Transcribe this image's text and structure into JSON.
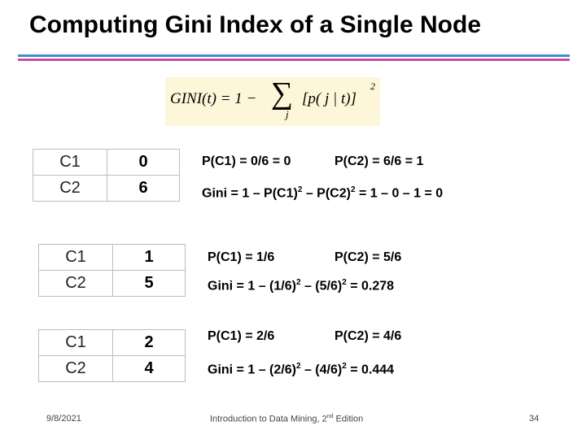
{
  "title": "Computing Gini Index of a Single Node",
  "formula": {
    "lhs": "GINI(t) = 1 −",
    "sum": "∑",
    "index": "j",
    "term": "[p( j | t)]",
    "power": "2"
  },
  "examples": [
    {
      "table": [
        [
          "C1",
          0
        ],
        [
          "C2",
          6
        ]
      ],
      "p1": "P(C1) = 0/6 = 0",
      "p2": "P(C2) = 6/6 = 1",
      "gini": [
        "Gini = 1 – P(C1)",
        "2",
        " – P(C2)",
        "2",
        " = 1 – 0 – 1 = 0"
      ]
    },
    {
      "table": [
        [
          "C1",
          1
        ],
        [
          "C2",
          5
        ]
      ],
      "p1": "P(C1) = 1/6",
      "p2": "P(C2) = 5/6",
      "gini": [
        "Gini = 1 – (1/6)",
        "2",
        " – (5/6)",
        "2",
        " = 0.278"
      ]
    },
    {
      "table": [
        [
          "C1",
          2
        ],
        [
          "C2",
          4
        ]
      ],
      "p1": "P(C1) = 2/6",
      "p2": "P(C2) = 4/6",
      "gini": [
        "Gini = 1 – (2/6)",
        "2",
        " – (4/6)",
        "2",
        " = 0.444"
      ]
    }
  ],
  "footer": {
    "date": "9/8/2021",
    "source": [
      "Introduction to Data Mining, 2",
      "nd",
      " Edition"
    ],
    "page": 34
  }
}
